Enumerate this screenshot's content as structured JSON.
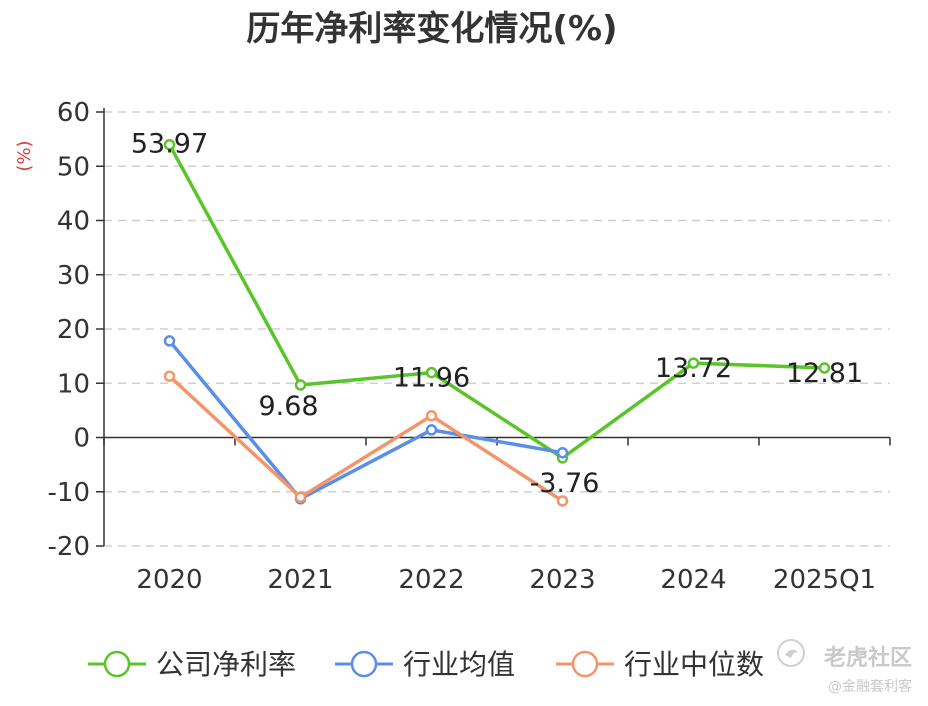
{
  "chart_data": {
    "type": "line",
    "title": "历年净利率变化情况(%)",
    "ylabel": "(%)",
    "categories": [
      "2020",
      "2021",
      "2022",
      "2023",
      "2024",
      "2025Q1"
    ],
    "ylim": [
      -20,
      60
    ],
    "yticks": [
      60,
      50,
      40,
      30,
      20,
      10,
      0,
      -10,
      -20
    ],
    "grid": true,
    "legend_position": "bottom",
    "series": [
      {
        "name": "公司净利率",
        "color": "#5bc42b",
        "values": [
          53.97,
          9.68,
          11.96,
          -3.76,
          13.72,
          12.81
        ],
        "labels": [
          "53.97",
          "9.68",
          "11.96",
          "-3.76",
          "13.72",
          "12.81"
        ]
      },
      {
        "name": "行业均值",
        "color": "#5b8ee6",
        "values": [
          17.8,
          -11.3,
          1.4,
          -2.8,
          null,
          null
        ]
      },
      {
        "name": "行业中位数",
        "color": "#f2956b",
        "values": [
          11.3,
          -11.0,
          4.0,
          -11.7,
          null,
          null
        ]
      }
    ]
  },
  "watermark": {
    "main": "老虎社区",
    "sub": "@金融套利客",
    "icon": "tiger-logo-icon"
  }
}
